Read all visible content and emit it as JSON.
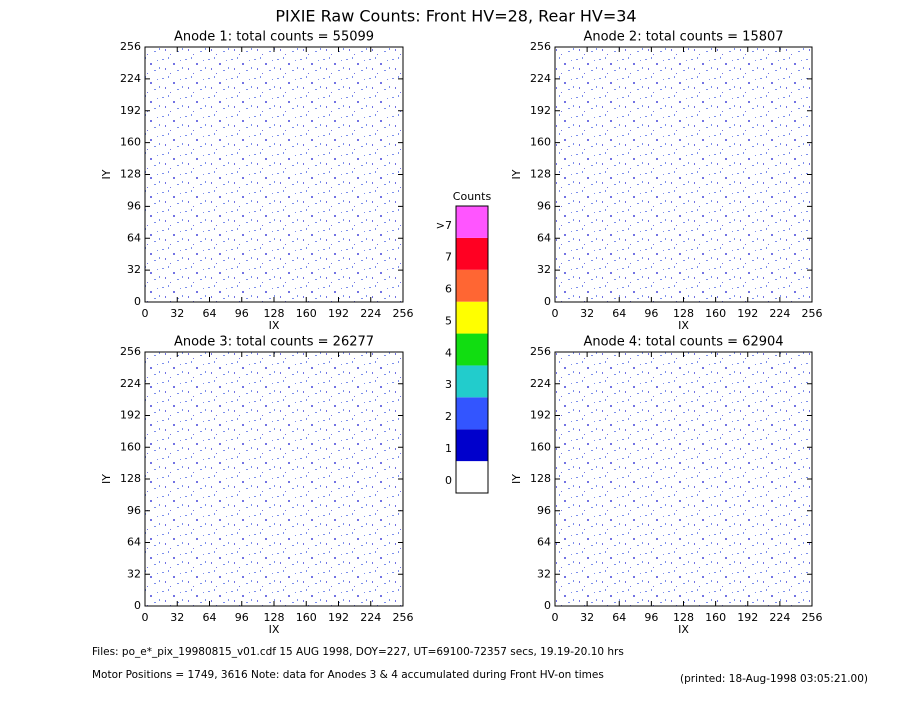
{
  "title": "PIXIE Raw Counts:  Front HV=28, Rear HV=34",
  "chart_data": [
    {
      "type": "heatmap",
      "title": "Anode 1: total counts = 55099",
      "xlabel": "IX",
      "ylabel": "IY",
      "xlim": [
        0,
        256
      ],
      "ylim": [
        0,
        256
      ],
      "xticks": [
        0,
        32,
        64,
        96,
        128,
        160,
        192,
        224,
        256
      ],
      "yticks": [
        0,
        32,
        64,
        96,
        128,
        160,
        192,
        224,
        256
      ]
    },
    {
      "type": "heatmap",
      "title": "Anode 2: total counts = 15807",
      "xlabel": "IX",
      "ylabel": "IY",
      "xlim": [
        0,
        256
      ],
      "ylim": [
        0,
        256
      ],
      "xticks": [
        0,
        32,
        64,
        96,
        128,
        160,
        192,
        224,
        256
      ],
      "yticks": [
        0,
        32,
        64,
        96,
        128,
        160,
        192,
        224,
        256
      ]
    },
    {
      "type": "heatmap",
      "title": "Anode 3: total counts = 26277",
      "xlabel": "IX",
      "ylabel": "IY",
      "xlim": [
        0,
        256
      ],
      "ylim": [
        0,
        256
      ],
      "xticks": [
        0,
        32,
        64,
        96,
        128,
        160,
        192,
        224,
        256
      ],
      "yticks": [
        0,
        32,
        64,
        96,
        128,
        160,
        192,
        224,
        256
      ]
    },
    {
      "type": "heatmap",
      "title": "Anode 4: total counts = 62904",
      "xlabel": "IX",
      "ylabel": "IY",
      "xlim": [
        0,
        256
      ],
      "ylim": [
        0,
        256
      ],
      "xticks": [
        0,
        32,
        64,
        96,
        128,
        160,
        192,
        224,
        256
      ],
      "yticks": [
        0,
        32,
        64,
        96,
        128,
        160,
        192,
        224,
        256
      ]
    }
  ],
  "colorbar": {
    "title": "Counts",
    "entries": [
      {
        "label": "0",
        "color": "#ffffff"
      },
      {
        "label": "1",
        "color": "#0000cc"
      },
      {
        "label": "2",
        "color": "#3355ff"
      },
      {
        "label": "3",
        "color": "#22cccc"
      },
      {
        "label": "4",
        "color": "#11dd11"
      },
      {
        "label": "5",
        "color": "#ffff00"
      },
      {
        "label": "6",
        "color": "#ff6633"
      },
      {
        "label": "7",
        "color": "#ff0022"
      },
      {
        "label": ">7",
        "color": "#ff55ff"
      }
    ]
  },
  "footer": {
    "files": "Files: po_e*_pix_19980815_v01.cdf    15 AUG 1998, DOY=227, UT=69100-72357 secs, 19.19-20.10 hrs",
    "motor": "Motor Positions = 1749, 3616    Note: data for Anodes 3 & 4 accumulated during Front HV-on times",
    "printed": "(printed: 18-Aug-1998 03:05:21.00)"
  }
}
